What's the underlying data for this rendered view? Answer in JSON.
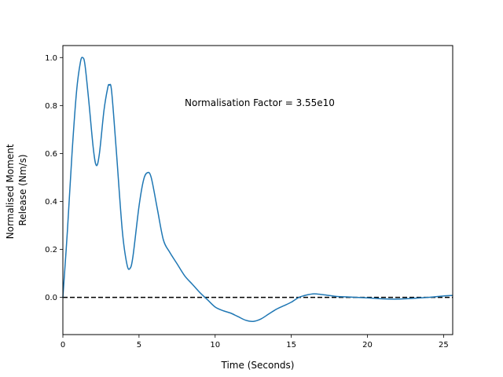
{
  "chart_data": {
    "type": "line",
    "title": "",
    "xlabel": "Time (Seconds)",
    "ylabel_lines": [
      "Normalised Moment",
      "Release (Nm/s)"
    ],
    "xlim": [
      0,
      25.6
    ],
    "ylim": [
      -0.155,
      1.05
    ],
    "x_ticks": [
      0,
      5,
      10,
      15,
      20,
      25
    ],
    "x_tick_labels": [
      "0",
      "5",
      "10",
      "15",
      "20",
      "25"
    ],
    "y_ticks": [
      0.0,
      0.2,
      0.4,
      0.6,
      0.8,
      1.0
    ],
    "y_tick_labels": [
      "0.0",
      "0.2",
      "0.4",
      "0.6",
      "0.8",
      "1.0"
    ],
    "annotation": "Normalisation Factor = 3.55e10",
    "reference_line": {
      "y": 0,
      "style": "dashed",
      "color": "#000000"
    },
    "grid": false,
    "series": [
      {
        "color": "#1f77b4",
        "x": [
          0,
          0.3,
          0.6,
          0.9,
          1.15,
          1.3,
          1.45,
          1.7,
          2.0,
          2.2,
          2.4,
          2.7,
          2.95,
          3.05,
          3.2,
          3.5,
          3.9,
          4.2,
          4.4,
          4.6,
          5.0,
          5.3,
          5.55,
          5.8,
          6.2,
          6.6,
          7.0,
          7.5,
          8.0,
          8.5,
          9.0,
          9.5,
          10.0,
          10.5,
          11.0,
          11.5,
          12.0,
          12.5,
          13.0,
          13.5,
          14.0,
          14.5,
          15.0,
          15.5,
          16.0,
          16.5,
          17.0,
          17.5,
          18.0,
          19.0,
          20.0,
          21.0,
          22.0,
          23.0,
          24.0,
          25.0,
          25.6
        ],
        "y": [
          0.0,
          0.28,
          0.6,
          0.86,
          0.98,
          1.0,
          0.97,
          0.82,
          0.62,
          0.55,
          0.6,
          0.78,
          0.875,
          0.885,
          0.86,
          0.62,
          0.28,
          0.14,
          0.12,
          0.17,
          0.38,
          0.49,
          0.52,
          0.5,
          0.37,
          0.24,
          0.19,
          0.14,
          0.09,
          0.055,
          0.02,
          -0.01,
          -0.04,
          -0.055,
          -0.065,
          -0.08,
          -0.095,
          -0.1,
          -0.09,
          -0.07,
          -0.05,
          -0.035,
          -0.02,
          0.0,
          0.01,
          0.015,
          0.012,
          0.008,
          0.004,
          0.001,
          -0.002,
          -0.006,
          -0.007,
          -0.004,
          0.0,
          0.006,
          0.008
        ]
      }
    ]
  }
}
